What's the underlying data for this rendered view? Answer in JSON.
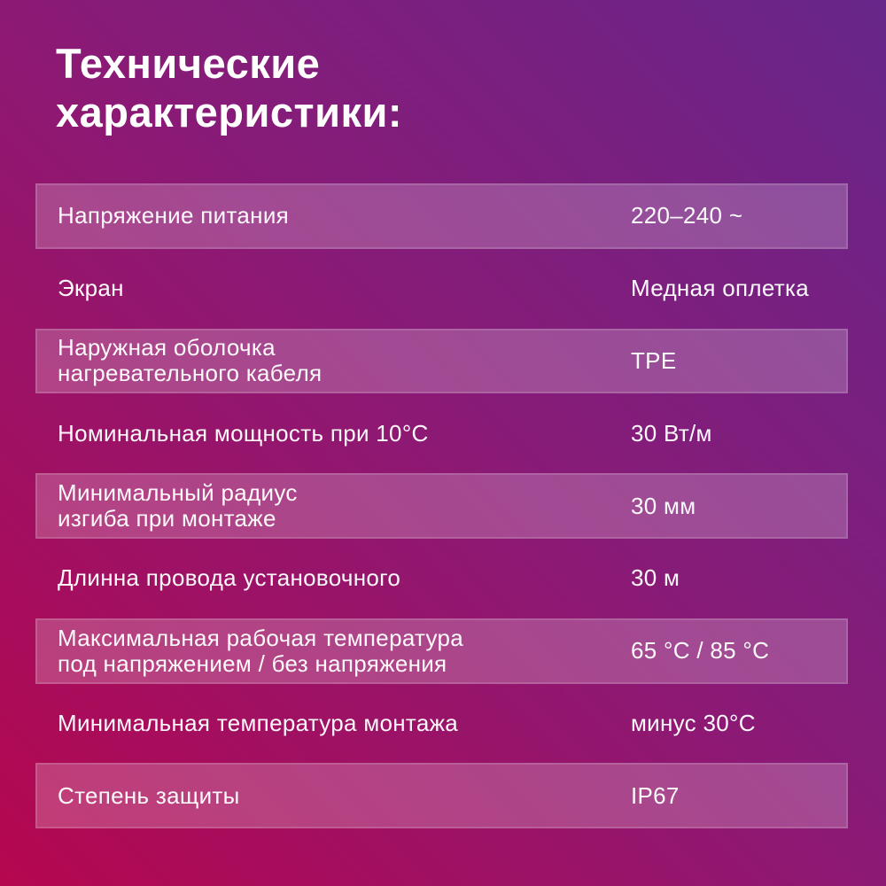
{
  "page": {
    "title_line1": "Технические",
    "title_line2": "характеристики:"
  },
  "table": {
    "rows": [
      {
        "label": "Напряжение питания",
        "label2": "",
        "value": "220–240 ~",
        "striped": true
      },
      {
        "label": "Экран",
        "label2": "",
        "value": "Медная оплетка",
        "striped": false
      },
      {
        "label": "Наружная оболочка",
        "label2": "нагревательного кабеля",
        "value": "TPE",
        "striped": true
      },
      {
        "label": "Номинальная мощность при 10°C",
        "label2": "",
        "value": "30 Вт/м",
        "striped": false
      },
      {
        "label": "Минимальный радиус",
        "label2": "изгиба при монтаже",
        "value": "30 мм",
        "striped": true
      },
      {
        "label": "Длинна провода установочного",
        "label2": "",
        "value": "30 м",
        "striped": false
      },
      {
        "label": "Максимальная рабочая температура",
        "label2": "под напряжением / без напряжения",
        "value": "65 °C / 85 °C",
        "striped": true
      },
      {
        "label": "Минимальная температура монтажа",
        "label2": "",
        "value": "минус 30°C",
        "striped": false
      },
      {
        "label": "Степень защиты",
        "label2": "",
        "value": "IP67",
        "striped": true
      }
    ]
  },
  "colors": {
    "bg_bottom_left": "#b5074f",
    "bg_mid": "#8a1a76",
    "bg_top_right": "#67268a",
    "stripe_overlay": "rgba(255,255,255,0.21)",
    "stripe_border": "rgba(255,255,255,0.14)",
    "text": "#ffffff"
  }
}
